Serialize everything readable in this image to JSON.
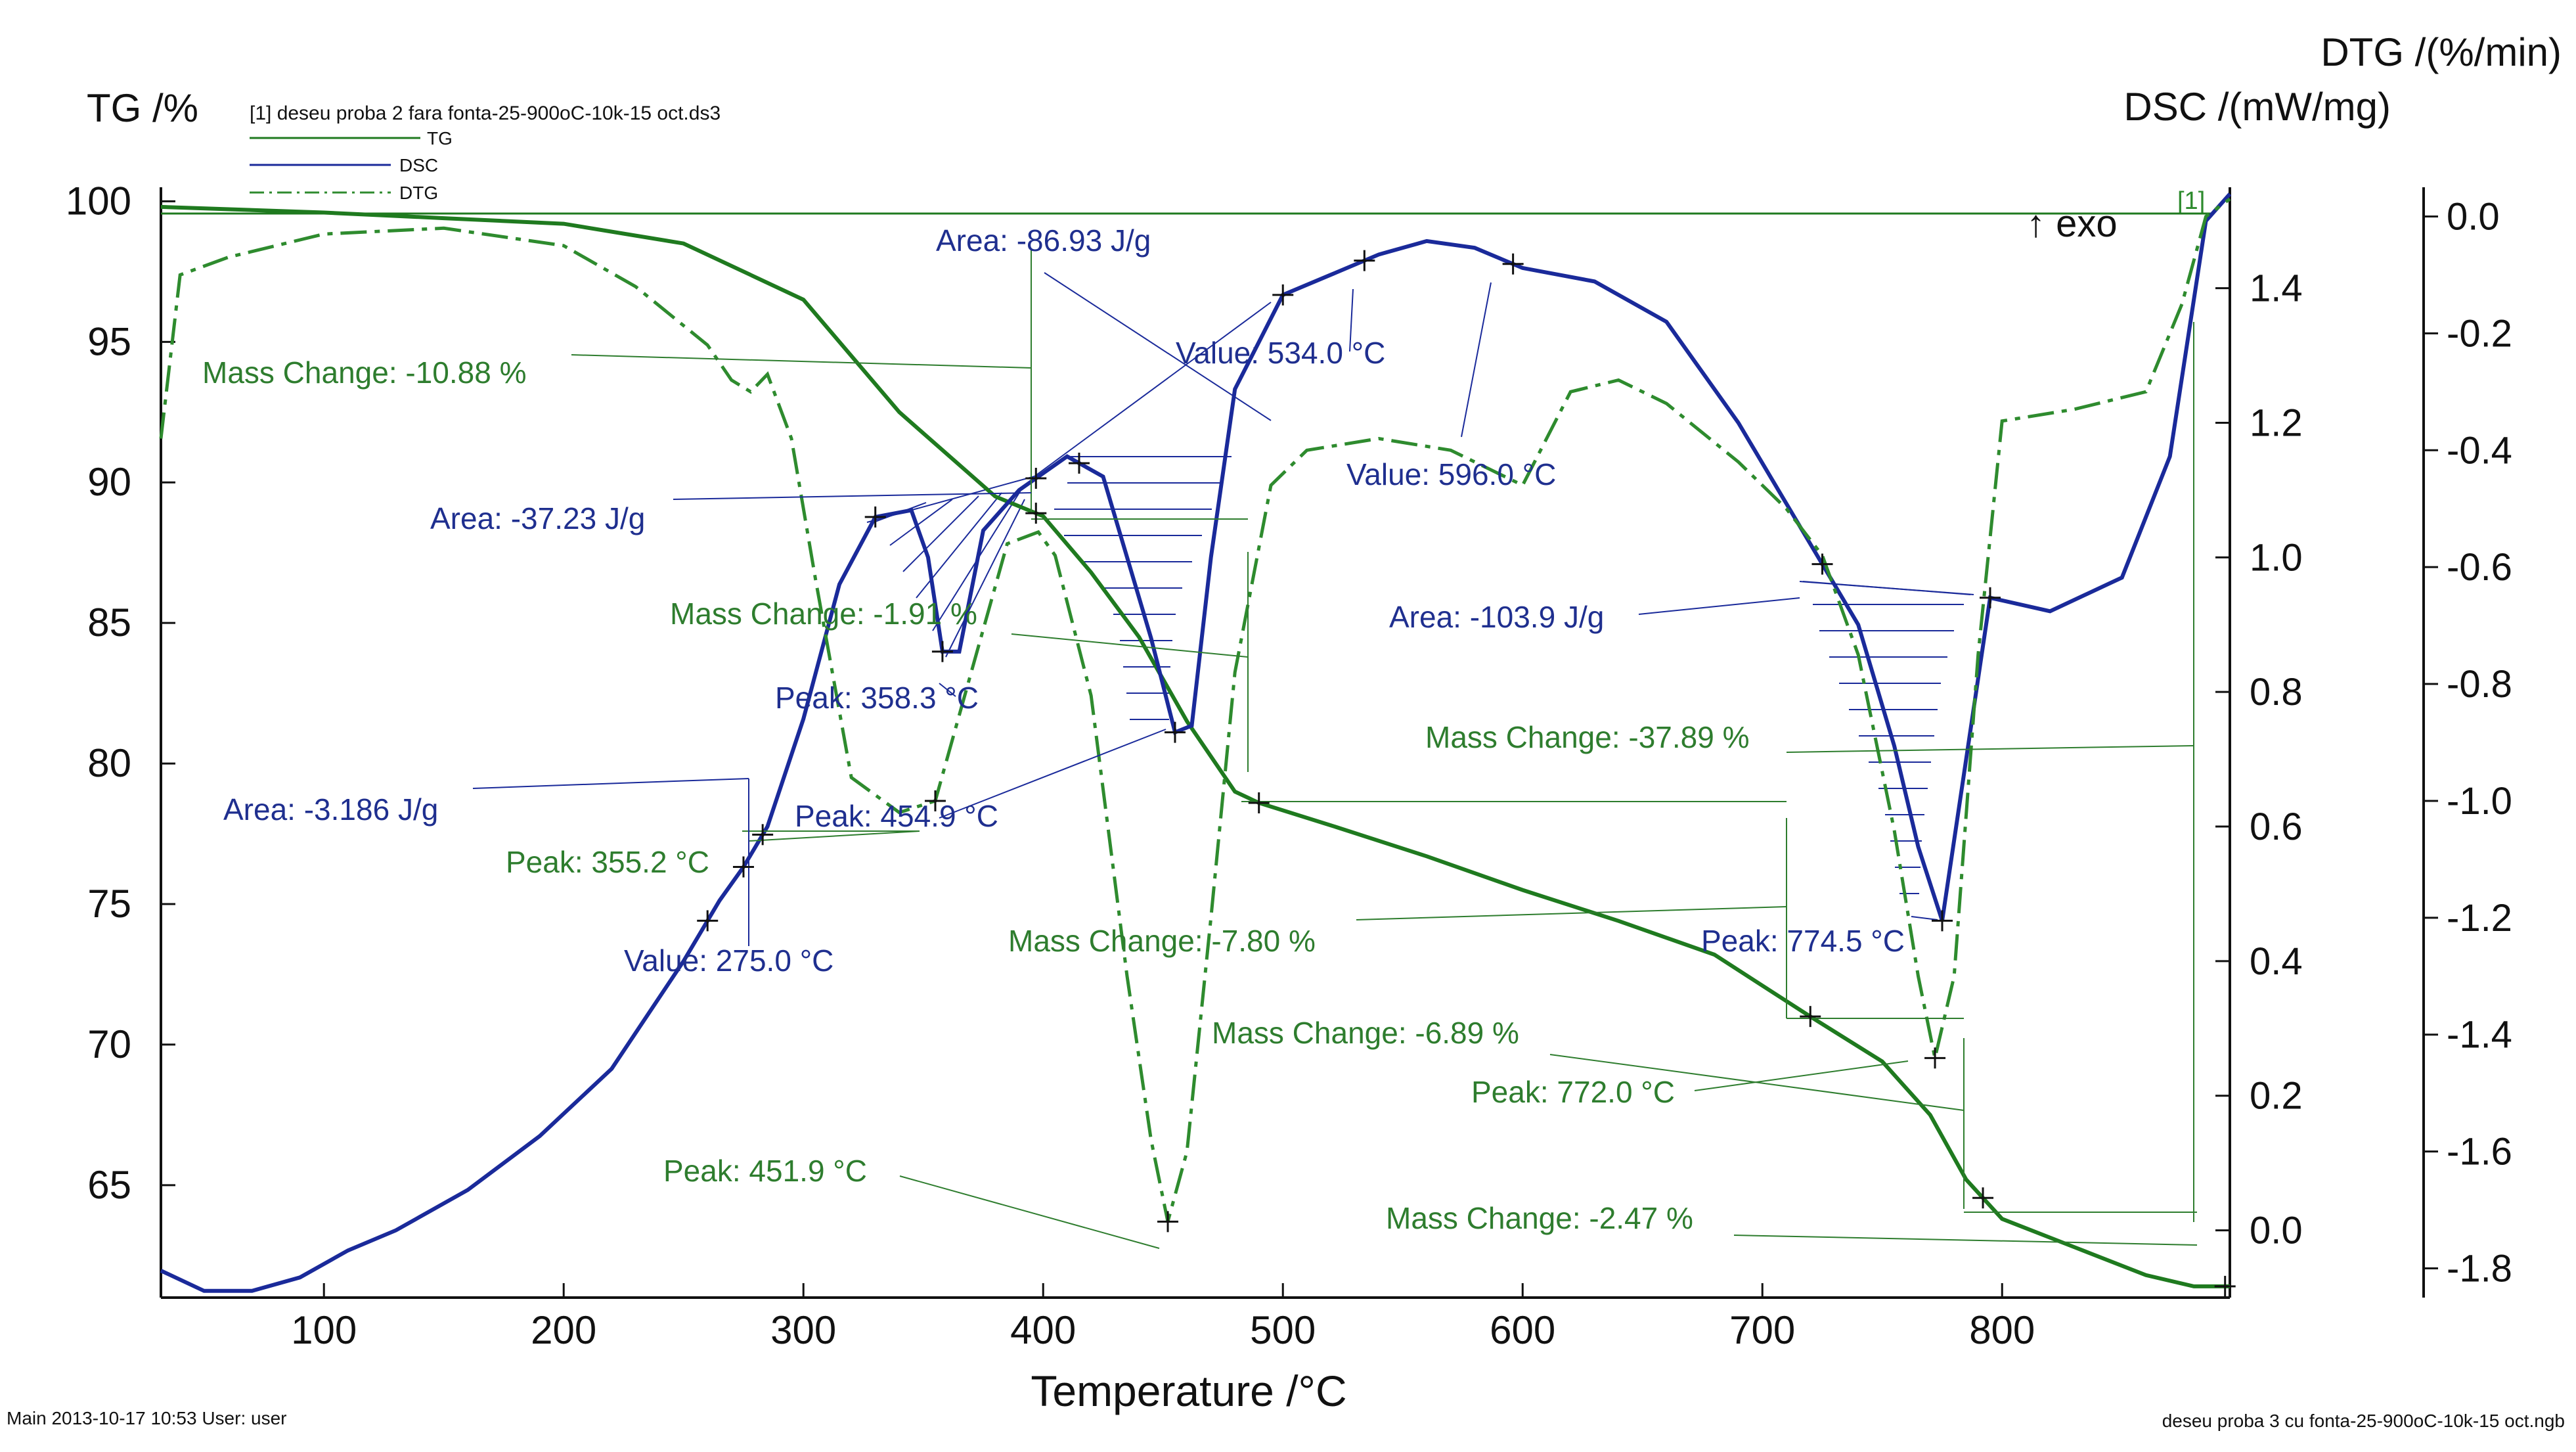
{
  "colors": {
    "tg": "#1f7a1f",
    "dsc": "#1a2a9a",
    "dtg": "#2e8b2e",
    "axis": "#111111"
  },
  "chart_data": {
    "type": "line",
    "title": "",
    "legend": {
      "file": "[1] deseu proba 2 fara fonta-25-900oC-10k-15 oct.ds3",
      "items": [
        "TG",
        "DSC",
        "DTG"
      ]
    },
    "x_axis": {
      "label": "Temperature /°C",
      "range": [
        32,
        895
      ],
      "ticks": [
        100,
        200,
        300,
        400,
        500,
        600,
        700,
        800
      ]
    },
    "tg_axis": {
      "label": "TG /%",
      "range": [
        61.0,
        100.5
      ],
      "ticks": [
        65,
        70,
        75,
        80,
        85,
        90,
        95,
        100
      ]
    },
    "dsc_axis": {
      "label": "DSC /(mW/mg)",
      "range": [
        -0.1,
        1.55
      ],
      "ticks": [
        "0.0",
        "0.2",
        "0.4",
        "0.6",
        "0.8",
        "1.0",
        "1.2",
        "1.4"
      ],
      "exo_label": "↑ exo",
      "curve_tag": "[1]"
    },
    "dtg_axis": {
      "label": "DTG /(%/min)",
      "range": [
        -1.85,
        0.05
      ],
      "ticks": [
        "0.0",
        "-0.2",
        "-0.4",
        "-0.6",
        "-0.8",
        "-1.0",
        "-1.2",
        "-1.4",
        "-1.6",
        "-1.8"
      ]
    },
    "series": [
      {
        "name": "TG",
        "axis": "tg",
        "points": [
          [
            32,
            99.8
          ],
          [
            100,
            99.6
          ],
          [
            150,
            99.4
          ],
          [
            200,
            99.2
          ],
          [
            250,
            98.5
          ],
          [
            300,
            96.5
          ],
          [
            340,
            92.5
          ],
          [
            380,
            89.5
          ],
          [
            400,
            88.8
          ],
          [
            420,
            86.8
          ],
          [
            440,
            84.5
          ],
          [
            460,
            81.5
          ],
          [
            480,
            79.0
          ],
          [
            490,
            78.6
          ],
          [
            520,
            77.8
          ],
          [
            560,
            76.7
          ],
          [
            600,
            75.5
          ],
          [
            640,
            74.4
          ],
          [
            680,
            73.2
          ],
          [
            720,
            71.0
          ],
          [
            750,
            69.4
          ],
          [
            770,
            67.5
          ],
          [
            785,
            65.2
          ],
          [
            800,
            63.8
          ],
          [
            830,
            62.8
          ],
          [
            860,
            61.8
          ],
          [
            880,
            61.4
          ],
          [
            895,
            61.4
          ]
        ]
      },
      {
        "name": "DSC",
        "axis": "dsc",
        "points": [
          [
            32,
            -0.06
          ],
          [
            50,
            -0.09
          ],
          [
            70,
            -0.09
          ],
          [
            90,
            -0.07
          ],
          [
            110,
            -0.03
          ],
          [
            130,
            0.0
          ],
          [
            160,
            0.06
          ],
          [
            190,
            0.14
          ],
          [
            220,
            0.24
          ],
          [
            250,
            0.4
          ],
          [
            265,
            0.49
          ],
          [
            275,
            0.54
          ],
          [
            285,
            0.6
          ],
          [
            300,
            0.76
          ],
          [
            315,
            0.96
          ],
          [
            330,
            1.06
          ],
          [
            345,
            1.07
          ],
          [
            352,
            1.0
          ],
          [
            358,
            0.86
          ],
          [
            365,
            0.86
          ],
          [
            375,
            1.04
          ],
          [
            390,
            1.1
          ],
          [
            410,
            1.15
          ],
          [
            425,
            1.12
          ],
          [
            435,
            1.0
          ],
          [
            445,
            0.88
          ],
          [
            455,
            0.74
          ],
          [
            462,
            0.75
          ],
          [
            470,
            1.0
          ],
          [
            480,
            1.25
          ],
          [
            500,
            1.39
          ],
          [
            520,
            1.42
          ],
          [
            540,
            1.45
          ],
          [
            560,
            1.47
          ],
          [
            580,
            1.46
          ],
          [
            600,
            1.43
          ],
          [
            630,
            1.41
          ],
          [
            660,
            1.35
          ],
          [
            690,
            1.2
          ],
          [
            710,
            1.08
          ],
          [
            725,
            0.99
          ],
          [
            740,
            0.9
          ],
          [
            755,
            0.72
          ],
          [
            765,
            0.57
          ],
          [
            775,
            0.46
          ],
          [
            785,
            0.7
          ],
          [
            795,
            0.94
          ],
          [
            820,
            0.92
          ],
          [
            850,
            0.97
          ],
          [
            870,
            1.15
          ],
          [
            885,
            1.5
          ],
          [
            895,
            1.54
          ]
        ]
      },
      {
        "name": "DTG",
        "axis": "dtg",
        "points": [
          [
            32,
            -0.38
          ],
          [
            40,
            -0.1
          ],
          [
            60,
            -0.07
          ],
          [
            100,
            -0.03
          ],
          [
            150,
            -0.02
          ],
          [
            200,
            -0.05
          ],
          [
            230,
            -0.12
          ],
          [
            260,
            -0.22
          ],
          [
            270,
            -0.28
          ],
          [
            278,
            -0.3
          ],
          [
            285,
            -0.27
          ],
          [
            295,
            -0.38
          ],
          [
            305,
            -0.62
          ],
          [
            320,
            -0.96
          ],
          [
            340,
            -1.02
          ],
          [
            355,
            -1.0
          ],
          [
            370,
            -0.78
          ],
          [
            385,
            -0.56
          ],
          [
            398,
            -0.54
          ],
          [
            405,
            -0.58
          ],
          [
            420,
            -0.82
          ],
          [
            435,
            -1.3
          ],
          [
            445,
            -1.58
          ],
          [
            452,
            -1.72
          ],
          [
            460,
            -1.6
          ],
          [
            470,
            -1.2
          ],
          [
            480,
            -0.78
          ],
          [
            495,
            -0.46
          ],
          [
            510,
            -0.4
          ],
          [
            540,
            -0.38
          ],
          [
            570,
            -0.4
          ],
          [
            600,
            -0.46
          ],
          [
            620,
            -0.3
          ],
          [
            640,
            -0.28
          ],
          [
            660,
            -0.32
          ],
          [
            690,
            -0.42
          ],
          [
            710,
            -0.5
          ],
          [
            725,
            -0.58
          ],
          [
            740,
            -0.75
          ],
          [
            755,
            -1.05
          ],
          [
            765,
            -1.3
          ],
          [
            772,
            -1.44
          ],
          [
            780,
            -1.3
          ],
          [
            790,
            -0.75
          ],
          [
            800,
            -0.35
          ],
          [
            830,
            -0.33
          ],
          [
            860,
            -0.3
          ],
          [
            875,
            -0.15
          ],
          [
            885,
            0.0
          ],
          [
            895,
            0.03
          ]
        ]
      }
    ],
    "annotations": [
      {
        "text": "Mass Change: -10.88 %",
        "color": "green"
      },
      {
        "text": "Area: -86.93 J/g",
        "color": "blue"
      },
      {
        "text": "Value: 534.0 °C",
        "color": "blue"
      },
      {
        "text": "Value: 596.0 °C",
        "color": "blue"
      },
      {
        "text": "Area: -37.23 J/g",
        "color": "blue"
      },
      {
        "text": "Mass Change: -1.91 %",
        "color": "green"
      },
      {
        "text": "Area: -103.9 J/g",
        "color": "blue"
      },
      {
        "text": "Peak: 358.3 °C",
        "color": "blue"
      },
      {
        "text": "Mass Change: -37.89 %",
        "color": "green"
      },
      {
        "text": "Area: -3.186 J/g",
        "color": "blue"
      },
      {
        "text": "Peak: 454.9 °C",
        "color": "blue"
      },
      {
        "text": "Peak: 355.2 °C",
        "color": "green"
      },
      {
        "text": "Mass Change: -7.80 %",
        "color": "green"
      },
      {
        "text": "Peak: 774.5 °C",
        "color": "blue"
      },
      {
        "text": "Value: 275.0 °C",
        "color": "blue"
      },
      {
        "text": "Mass Change: -6.89 %",
        "color": "green"
      },
      {
        "text": "Peak: 772.0 °C",
        "color": "green"
      },
      {
        "text": "Peak: 451.9 °C",
        "color": "green"
      },
      {
        "text": "Mass Change: -2.47 %",
        "color": "green"
      }
    ]
  },
  "footer": {
    "left": "Main   2013-10-17 10:53     User: user",
    "right": "deseu proba 3 cu fonta-25-900oC-10k-15 oct.ngb"
  }
}
